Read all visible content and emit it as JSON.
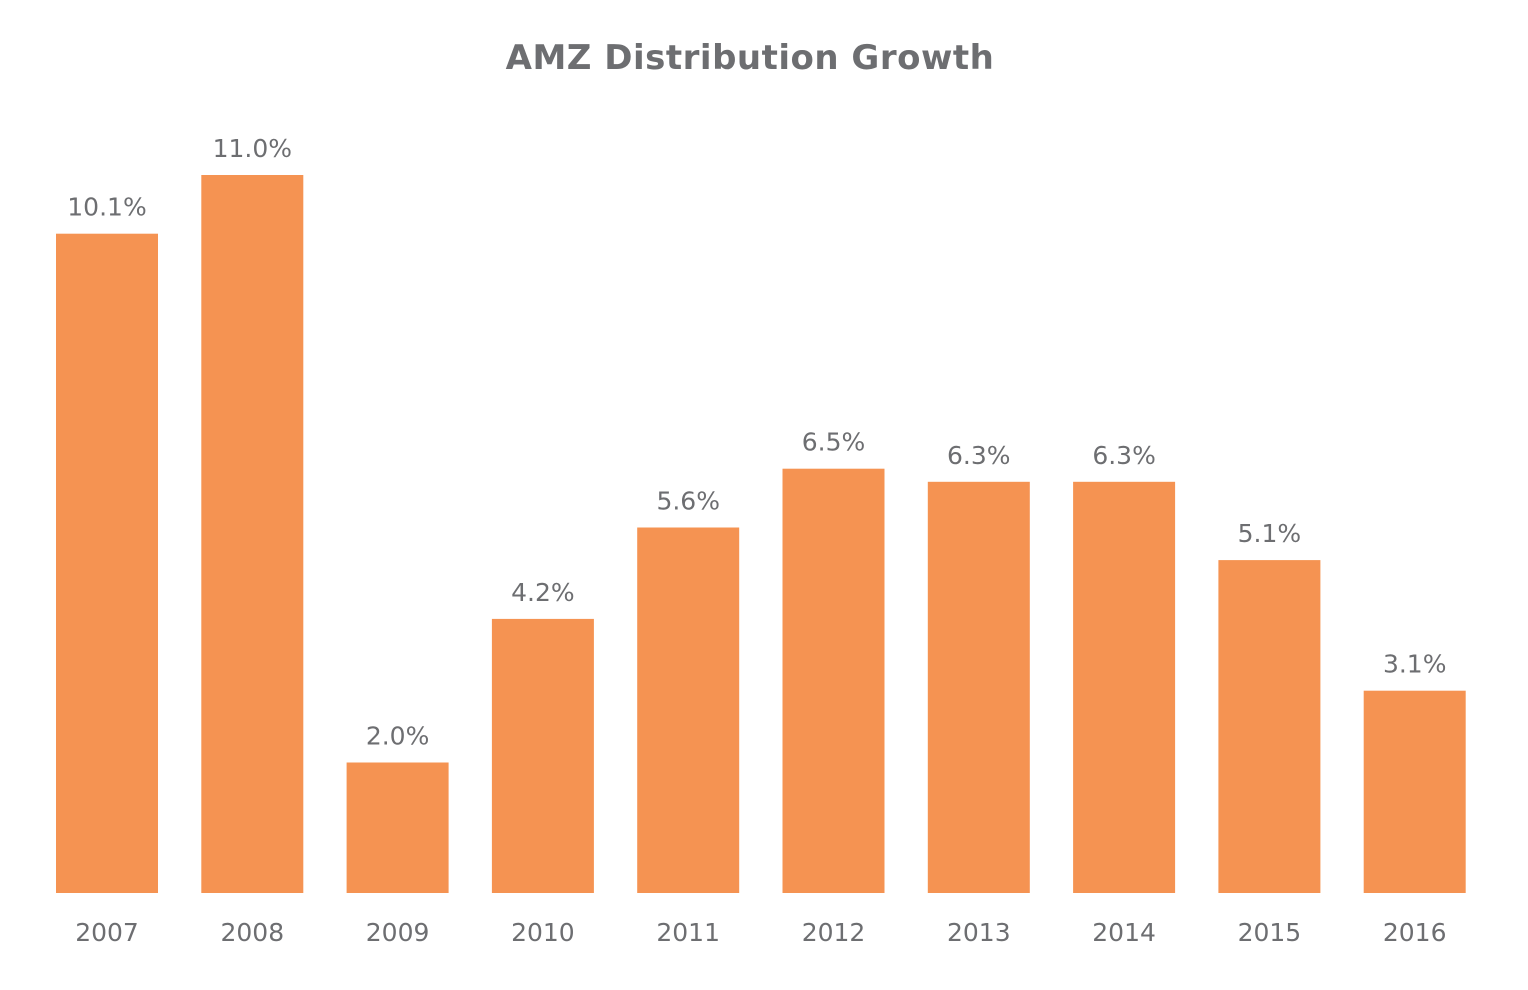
{
  "chart_data": {
    "type": "bar",
    "title": "AMZ Distribution Growth",
    "xlabel": "",
    "ylabel": "",
    "categories": [
      "2007",
      "2008",
      "2009",
      "2010",
      "2011",
      "2012",
      "2013",
      "2014",
      "2015",
      "2016"
    ],
    "values": [
      10.1,
      11.0,
      2.0,
      4.2,
      5.6,
      6.5,
      6.3,
      6.3,
      5.1,
      3.1
    ],
    "data_labels": [
      "10.1%",
      "11.0%",
      "2.0%",
      "4.2%",
      "5.6%",
      "6.5%",
      "6.3%",
      "6.3%",
      "5.1%",
      "3.1%"
    ],
    "ylim": [
      0,
      11.0
    ],
    "grid": false,
    "legend": "none",
    "bar_color": "#f59352",
    "text_color": "#6d6e71"
  }
}
